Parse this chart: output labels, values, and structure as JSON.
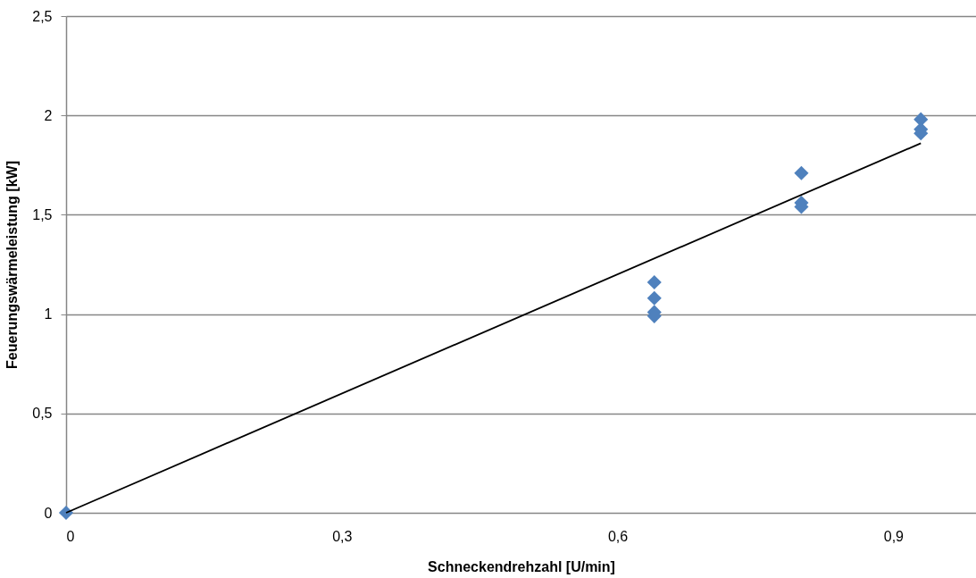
{
  "chart_data": {
    "type": "scatter",
    "xlabel": "Schneckendrehzahl [U/min]",
    "ylabel": "Feuerungswärmeleistung [kW]",
    "xlim": [
      0,
      0.99
    ],
    "ylim": [
      0,
      2.5
    ],
    "xticks": [
      {
        "value": 0,
        "label": "0"
      },
      {
        "value": 0.3,
        "label": "0,3"
      },
      {
        "value": 0.6,
        "label": "0,6"
      },
      {
        "value": 0.9,
        "label": "0,9"
      }
    ],
    "yticks": [
      {
        "value": 0,
        "label": "0"
      },
      {
        "value": 0.5,
        "label": "0,5"
      },
      {
        "value": 1,
        "label": "1"
      },
      {
        "value": 1.5,
        "label": "1,5"
      },
      {
        "value": 2,
        "label": "2"
      },
      {
        "value": 2.5,
        "label": "2,5"
      }
    ],
    "grid": "y",
    "series": [
      {
        "marker": "diamond",
        "color": "#4f81bd",
        "x": [
          0,
          0.64,
          0.64,
          0.64,
          0.64,
          0.8,
          0.8,
          0.8,
          0.93,
          0.93,
          0.93
        ],
        "values": [
          0,
          1.16,
          1.08,
          1.01,
          0.99,
          1.71,
          1.56,
          1.54,
          1.98,
          1.93,
          1.91
        ]
      },
      {
        "type": "line",
        "marker": "none",
        "color": "#000000",
        "line_style": "solid",
        "x": [
          0,
          0.93
        ],
        "values": [
          0,
          1.86
        ]
      }
    ]
  }
}
